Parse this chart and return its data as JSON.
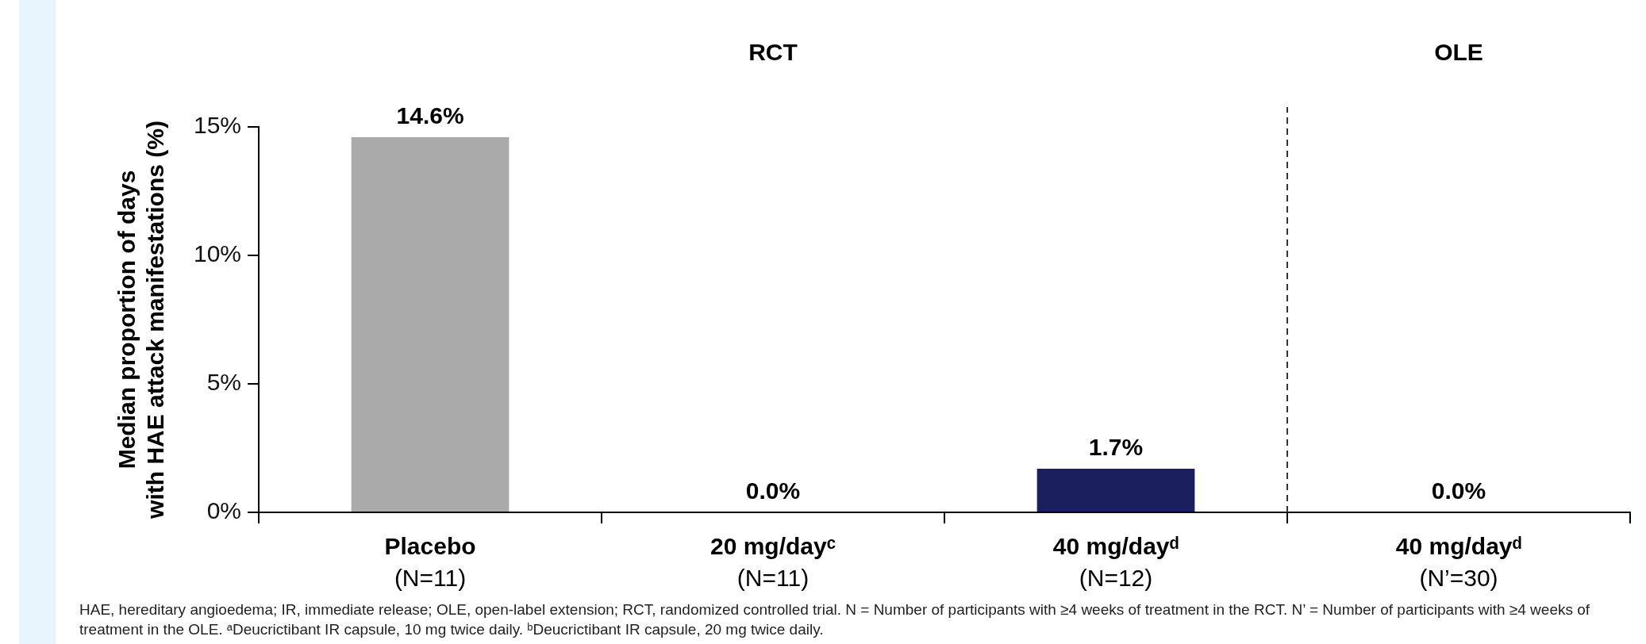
{
  "chart_data": {
    "type": "bar",
    "ylabel": "Median proportion of days\nwith HAE attack manifestations (%)",
    "categories": [
      "Placebo\n(N=11)",
      "20 mg/dayᶜ\n(N=11)",
      "40 mg/dayᵈ\n(N=12)",
      "40 mg/dayᵈ\n(N’=30)"
    ],
    "values": [
      14.6,
      0.0,
      1.7,
      0.0
    ],
    "colors": [
      "#aaaaaa",
      "#1b1f5e",
      "#1b1f5e",
      "#1b1f5e"
    ],
    "value_labels": [
      "14.6%",
      "0.0%",
      "1.7%",
      "0.0%"
    ],
    "ylim": [
      0,
      15
    ],
    "yticks": [
      {
        "value": 0,
        "label": "0%"
      },
      {
        "value": 5,
        "label": "5%"
      },
      {
        "value": 10,
        "label": "10%"
      },
      {
        "value": 15,
        "label": "15%"
      }
    ],
    "annotations": [
      "RCT",
      "OLE",
      "HAE, hereditary angioedema; IR, immediate release; OLE, open-label extension; RCT, randomized controlled trial. N = Number of participants with ≥4 weeks of treatment in the RCT. N’ = Number of participants with ≥4 weeks of treatment in the OLE. ᵃDeucrictibant IR capsule, 10 mg twice daily. ᵇDeucrictibant IR capsule, 20 mg twice daily."
    ],
    "grid": false,
    "legend": false
  }
}
